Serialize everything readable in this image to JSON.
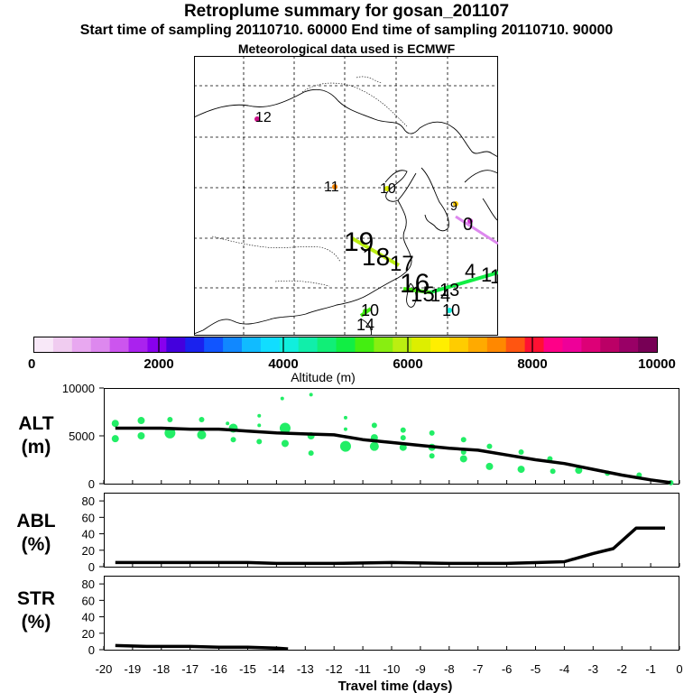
{
  "header": {
    "title": "Retroplume summary for gosan_201107",
    "subtitle_line": "Start time of sampling 20110710. 60000     End time of sampling 20110710. 90000",
    "met_line": "Meteorological data used is ECMWF"
  },
  "colorbar": {
    "label": "Altitude (m)",
    "ticks": [
      "0",
      "2000",
      "4000",
      "6000",
      "8000",
      "10000"
    ],
    "range": [
      0,
      10000
    ],
    "colors": [
      "#f8e8f8",
      "#f0ccf0",
      "#e8a8f0",
      "#dd88ee",
      "#cc55ee",
      "#aa22ee",
      "#8800ee",
      "#4400dd",
      "#1a22ee",
      "#1155ff",
      "#1188ff",
      "#11bbff",
      "#11ddff",
      "#11eedd",
      "#11eeaa",
      "#11ee77",
      "#11ee44",
      "#44ee11",
      "#88ee11",
      "#bbee11",
      "#ddee00",
      "#ffee00",
      "#ffcc00",
      "#ffaa00",
      "#ff8800",
      "#ff5511",
      "#ff1133",
      "#ff0088",
      "#ee0099",
      "#dd0077",
      "#bb0066",
      "#990066",
      "#770055"
    ]
  },
  "map": {
    "trajectory_labels": [
      {
        "text": "12",
        "color": "#cc1188"
      },
      {
        "text": "11",
        "color": "#ff8800"
      },
      {
        "text": "10",
        "color": "#ddee00"
      },
      {
        "text": "9",
        "color": "#ffcc00"
      },
      {
        "text": "0",
        "color": "#cc33cc"
      },
      {
        "text": "19",
        "color": "#bbee11"
      },
      {
        "text": "18",
        "color": "#bbee11"
      },
      {
        "text": "17",
        "color": "#88ee11"
      },
      {
        "text": "16",
        "color": "#44ee11"
      },
      {
        "text": "15",
        "color": "#44ee11"
      },
      {
        "text": "14",
        "color": "#11ee77"
      },
      {
        "text": "13",
        "color": "#88ee11"
      },
      {
        "text": "10",
        "color": "#44ee11"
      },
      {
        "text": "14",
        "color": "#44ee11"
      },
      {
        "text": "10",
        "color": "#11eedd"
      }
    ]
  },
  "chart_data": [
    {
      "type": "line",
      "name": "ALT",
      "ylabel_line1": "ALT",
      "ylabel_line2": "(m)",
      "yticks": [
        "10000",
        "5000",
        "0"
      ],
      "ylim": [
        0,
        10000
      ],
      "x": [
        -19.6,
        -18,
        -17,
        -16,
        -15,
        -14,
        -13,
        -12,
        -11,
        -10,
        -9,
        -8,
        -7,
        -6,
        -5,
        -4,
        -3,
        -2,
        -1,
        -0.3
      ],
      "values": [
        5800,
        5800,
        5700,
        5700,
        5500,
        5300,
        5200,
        5100,
        4600,
        4300,
        4000,
        3700,
        3500,
        3000,
        2500,
        2100,
        1500,
        900,
        400,
        100
      ],
      "scatter_points": [
        {
          "x": -19.6,
          "y": 6300,
          "r": 4
        },
        {
          "x": -19.6,
          "y": 4700,
          "r": 4
        },
        {
          "x": -18.7,
          "y": 6600,
          "r": 4
        },
        {
          "x": -18.7,
          "y": 5000,
          "r": 4
        },
        {
          "x": -17.7,
          "y": 6700,
          "r": 3
        },
        {
          "x": -17.7,
          "y": 5300,
          "r": 6
        },
        {
          "x": -16.6,
          "y": 6700,
          "r": 3
        },
        {
          "x": -16.6,
          "y": 5100,
          "r": 5
        },
        {
          "x": -15.7,
          "y": 6300,
          "r": 2
        },
        {
          "x": -15.5,
          "y": 5800,
          "r": 5
        },
        {
          "x": -15.5,
          "y": 4600,
          "r": 3
        },
        {
          "x": -14.6,
          "y": 7100,
          "r": 2
        },
        {
          "x": -14.6,
          "y": 6100,
          "r": 2
        },
        {
          "x": -14.6,
          "y": 4400,
          "r": 3
        },
        {
          "x": -13.8,
          "y": 8900,
          "r": 2
        },
        {
          "x": -13.7,
          "y": 5800,
          "r": 6
        },
        {
          "x": -13.7,
          "y": 4200,
          "r": 4
        },
        {
          "x": -12.8,
          "y": 9300,
          "r": 2
        },
        {
          "x": -12.8,
          "y": 5000,
          "r": 4
        },
        {
          "x": -12.8,
          "y": 3200,
          "r": 3
        },
        {
          "x": -11.6,
          "y": 6900,
          "r": 2
        },
        {
          "x": -11.6,
          "y": 5700,
          "r": 2
        },
        {
          "x": -11.6,
          "y": 3900,
          "r": 6
        },
        {
          "x": -10.6,
          "y": 6100,
          "r": 3
        },
        {
          "x": -10.6,
          "y": 4800,
          "r": 4
        },
        {
          "x": -10.6,
          "y": 3900,
          "r": 5
        },
        {
          "x": -9.6,
          "y": 5600,
          "r": 3
        },
        {
          "x": -9.6,
          "y": 4800,
          "r": 3
        },
        {
          "x": -9.6,
          "y": 3800,
          "r": 4
        },
        {
          "x": -8.6,
          "y": 5300,
          "r": 3
        },
        {
          "x": -8.6,
          "y": 3800,
          "r": 4
        },
        {
          "x": -8.6,
          "y": 2900,
          "r": 3
        },
        {
          "x": -7.5,
          "y": 4600,
          "r": 3
        },
        {
          "x": -7.5,
          "y": 3300,
          "r": 3
        },
        {
          "x": -7.5,
          "y": 2600,
          "r": 4
        },
        {
          "x": -6.6,
          "y": 3900,
          "r": 3
        },
        {
          "x": -6.6,
          "y": 1800,
          "r": 4
        },
        {
          "x": -5.5,
          "y": 3300,
          "r": 3
        },
        {
          "x": -5.5,
          "y": 1500,
          "r": 4
        },
        {
          "x": -4.5,
          "y": 2600,
          "r": 3
        },
        {
          "x": -4.4,
          "y": 1300,
          "r": 3
        },
        {
          "x": -3.5,
          "y": 1400,
          "r": 4
        },
        {
          "x": -2.5,
          "y": 1100,
          "r": 3
        },
        {
          "x": -1.4,
          "y": 900,
          "r": 3
        },
        {
          "x": -0.3,
          "y": 100,
          "r": 3
        }
      ]
    },
    {
      "type": "line",
      "name": "ABL",
      "ylabel_line1": "ABL",
      "ylabel_line2": "(%)",
      "yticks": [
        "80",
        "60",
        "40",
        "20",
        "0"
      ],
      "ylim": [
        0,
        90
      ],
      "x": [
        -19.6,
        -15,
        -14,
        -12,
        -10,
        -8,
        -6,
        -4.9,
        -4,
        -3,
        -2.3,
        -1.5,
        -0.5
      ],
      "values": [
        5,
        5,
        4,
        4,
        5,
        4,
        4,
        5,
        6,
        16,
        22,
        47,
        47
      ]
    },
    {
      "type": "line",
      "name": "STR",
      "ylabel_line1": "STR",
      "ylabel_line2": "(%)",
      "yticks": [
        "80",
        "60",
        "40",
        "20",
        "0"
      ],
      "ylim": [
        0,
        90
      ],
      "x": [
        -19.6,
        -18.5,
        -17,
        -16,
        -15,
        -14,
        -13.6
      ],
      "values": [
        5,
        4,
        4,
        3,
        3,
        2,
        1
      ]
    }
  ],
  "xaxis": {
    "ticks": [
      "-20",
      "-19",
      "-18",
      "-17",
      "-16",
      "-15",
      "-14",
      "-13",
      "-12",
      "-11",
      "-10",
      "-9",
      "-8",
      "-7",
      "-6",
      "-5",
      "-4",
      "-3",
      "-2",
      "-1",
      "0"
    ],
    "xlabel": "Travel time (days)",
    "xlim": [
      -20,
      0
    ]
  }
}
